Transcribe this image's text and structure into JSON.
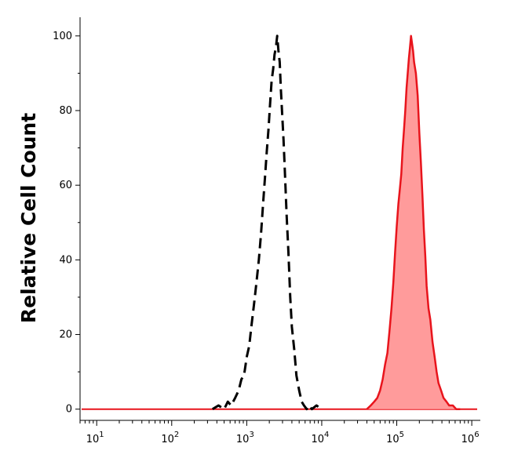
{
  "chart_data": {
    "type": "area",
    "title": "",
    "xlabel": "",
    "ylabel": "Relative Cell Count",
    "x_scale": "log",
    "xlim": [
      6,
      1300000
    ],
    "ylim": [
      -3,
      105
    ],
    "grid": false,
    "legend": "none",
    "x_ticks": [
      10,
      100,
      1000,
      10000,
      100000,
      1000000
    ],
    "x_tick_labels": [
      {
        "base": "10",
        "exp": "1"
      },
      {
        "base": "10",
        "exp": "2"
      },
      {
        "base": "10",
        "exp": "3"
      },
      {
        "base": "10",
        "exp": "4"
      },
      {
        "base": "10",
        "exp": "5"
      },
      {
        "base": "10",
        "exp": "6"
      }
    ],
    "y_ticks": [
      0,
      20,
      40,
      60,
      80,
      100
    ],
    "y_tick_labels": [
      "0",
      "20",
      "40",
      "60",
      "80",
      "100"
    ],
    "colors": {
      "control": "#000000",
      "stained_line": "#e8141c",
      "stained_fill": "#ff9b9b"
    },
    "series": [
      {
        "style": "dashed-outline",
        "color": "#000000",
        "x": [
          350,
          420,
          500,
          560,
          620,
          700,
          780,
          850,
          920,
          1000,
          1080,
          1150,
          1250,
          1350,
          1450,
          1550,
          1650,
          1750,
          1850,
          1950,
          2050,
          2150,
          2250,
          2350,
          2450,
          2550,
          2650,
          2750,
          2850,
          2950,
          3100,
          3250,
          3400,
          3600,
          3800,
          4000,
          4300,
          4600,
          5000,
          5400,
          5800,
          6300,
          6800,
          7400,
          8500,
          10000
        ],
        "y": [
          0,
          1,
          0,
          2,
          1,
          3,
          5,
          8,
          9,
          14,
          17,
          22,
          28,
          34,
          40,
          47,
          55,
          62,
          69,
          75,
          82,
          88,
          91,
          95,
          97,
          100,
          96,
          93,
          86,
          80,
          72,
          62,
          52,
          42,
          30,
          22,
          16,
          9,
          5,
          2,
          1,
          0,
          1,
          0,
          1,
          0
        ]
      },
      {
        "style": "filled",
        "color": "#e8141c",
        "x": [
          40000,
          45000,
          50000,
          55000,
          60000,
          65000,
          70000,
          75000,
          80000,
          85000,
          90000,
          95000,
          100000,
          105000,
          110000,
          115000,
          120000,
          125000,
          130000,
          135000,
          140000,
          145000,
          150000,
          155000,
          160000,
          165000,
          170000,
          180000,
          190000,
          200000,
          210000,
          220000,
          230000,
          240000,
          250000,
          265000,
          280000,
          300000,
          320000,
          340000,
          360000,
          390000,
          420000,
          460000,
          500000,
          560000,
          620000,
          700000
        ],
        "y": [
          0,
          1,
          2,
          3,
          5,
          8,
          12,
          15,
          21,
          27,
          34,
          42,
          49,
          55,
          59,
          63,
          70,
          75,
          80,
          86,
          90,
          94,
          97,
          100,
          98,
          96,
          93,
          90,
          84,
          74,
          66,
          57,
          48,
          41,
          33,
          27,
          24,
          18,
          14,
          10,
          7,
          5,
          3,
          2,
          1,
          1,
          0,
          0
        ]
      }
    ]
  }
}
